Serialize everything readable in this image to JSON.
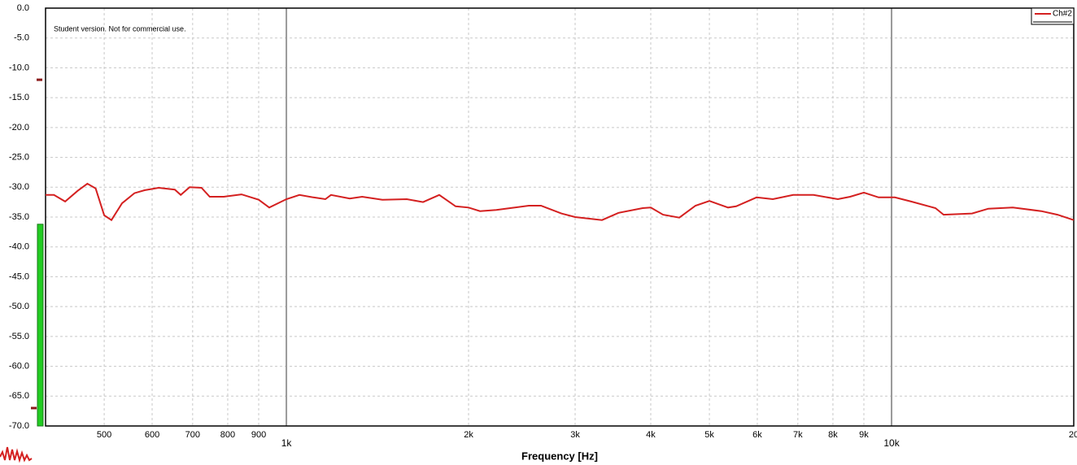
{
  "chart_data": {
    "type": "line",
    "log_x": true,
    "grid": true,
    "legend": "top-right",
    "annotation": "Student version. Not for commercial use.",
    "x_label": "Frequency [Hz]",
    "xlim": [
      400,
      20000
    ],
    "ylim": [
      -70,
      0
    ],
    "yticks": [
      {
        "value": 0,
        "label": "0.0"
      },
      {
        "value": -5,
        "label": "-5.0"
      },
      {
        "value": -10,
        "label": "-10.0"
      },
      {
        "value": -15,
        "label": "-15.0"
      },
      {
        "value": -20,
        "label": "-20.0"
      },
      {
        "value": -25,
        "label": "-25.0"
      },
      {
        "value": -30,
        "label": "-30.0"
      },
      {
        "value": -35,
        "label": "-35.0"
      },
      {
        "value": -40,
        "label": "-40.0"
      },
      {
        "value": -45,
        "label": "-45.0"
      },
      {
        "value": -50,
        "label": "-50.0"
      },
      {
        "value": -55,
        "label": "-55.0"
      },
      {
        "value": -60,
        "label": "-60.0"
      },
      {
        "value": -65,
        "label": "-65.0"
      },
      {
        "value": -70,
        "label": "-70.0"
      }
    ],
    "xticks": [
      500,
      600,
      700,
      800,
      900,
      {
        "value": 1000,
        "label": "1k"
      },
      {
        "value": 2000,
        "label": "2k"
      },
      {
        "value": 3000,
        "label": "3k"
      },
      {
        "value": 4000,
        "label": "4k"
      },
      {
        "value": 5000,
        "label": "5k"
      },
      {
        "value": 6000,
        "label": "6k"
      },
      {
        "value": 7000,
        "label": "7k"
      },
      {
        "value": 8000,
        "label": "8k"
      },
      {
        "value": 9000,
        "label": "9k"
      },
      {
        "value": 10000,
        "label": "10k"
      },
      {
        "value": 20000,
        "label": "20"
      }
    ],
    "meter": {
      "level": -36.2,
      "color": "#22cc22",
      "peak_markers": [
        -12,
        -67
      ],
      "marker_color": "#8b1a1a"
    },
    "x": [
      400,
      413,
      431,
      452,
      469,
      484,
      500,
      514,
      535,
      561,
      583,
      615,
      654,
      669,
      692,
      724,
      747,
      788,
      843,
      900,
      937,
      1000,
      1051,
      1108,
      1160,
      1185,
      1273,
      1334,
      1441,
      1581,
      1682,
      1789,
      1904,
      2000,
      2089,
      2223,
      2515,
      2635,
      2847,
      3000,
      3323,
      3535,
      3879,
      4000,
      4192,
      4459,
      4743,
      5000,
      5368,
      5537,
      5983,
      6365,
      6877,
      7430,
      8152,
      8541,
      9000,
      9518,
      10125,
      10772,
      11818,
      12190,
      13583,
      14450,
      15863,
      17676,
      18802,
      20000
    ],
    "series": [
      {
        "name": "Ch#2",
        "color": "#d42020",
        "values": [
          -31.3,
          -31.3,
          -32.4,
          -30.6,
          -29.4,
          -30.2,
          -34.7,
          -35.5,
          -32.7,
          -31.0,
          -30.5,
          -30.1,
          -30.4,
          -31.3,
          -30.0,
          -30.1,
          -31.6,
          -31.6,
          -31.2,
          -32.1,
          -33.4,
          -32.0,
          -31.3,
          -31.7,
          -32.0,
          -31.3,
          -31.9,
          -31.6,
          -32.1,
          -32.0,
          -32.5,
          -31.3,
          -33.2,
          -33.4,
          -34.0,
          -33.8,
          -33.1,
          -33.1,
          -34.4,
          -35.0,
          -35.5,
          -34.3,
          -33.5,
          -33.4,
          -34.6,
          -35.1,
          -33.1,
          -32.3,
          -33.4,
          -33.2,
          -31.7,
          -32.0,
          -31.3,
          -31.3,
          -32.0,
          -31.6,
          -30.9,
          -31.7,
          -31.7,
          -32.4,
          -33.5,
          -34.6,
          -34.4,
          -33.6,
          -33.4,
          -34.0,
          -34.6,
          -35.5
        ]
      }
    ]
  }
}
